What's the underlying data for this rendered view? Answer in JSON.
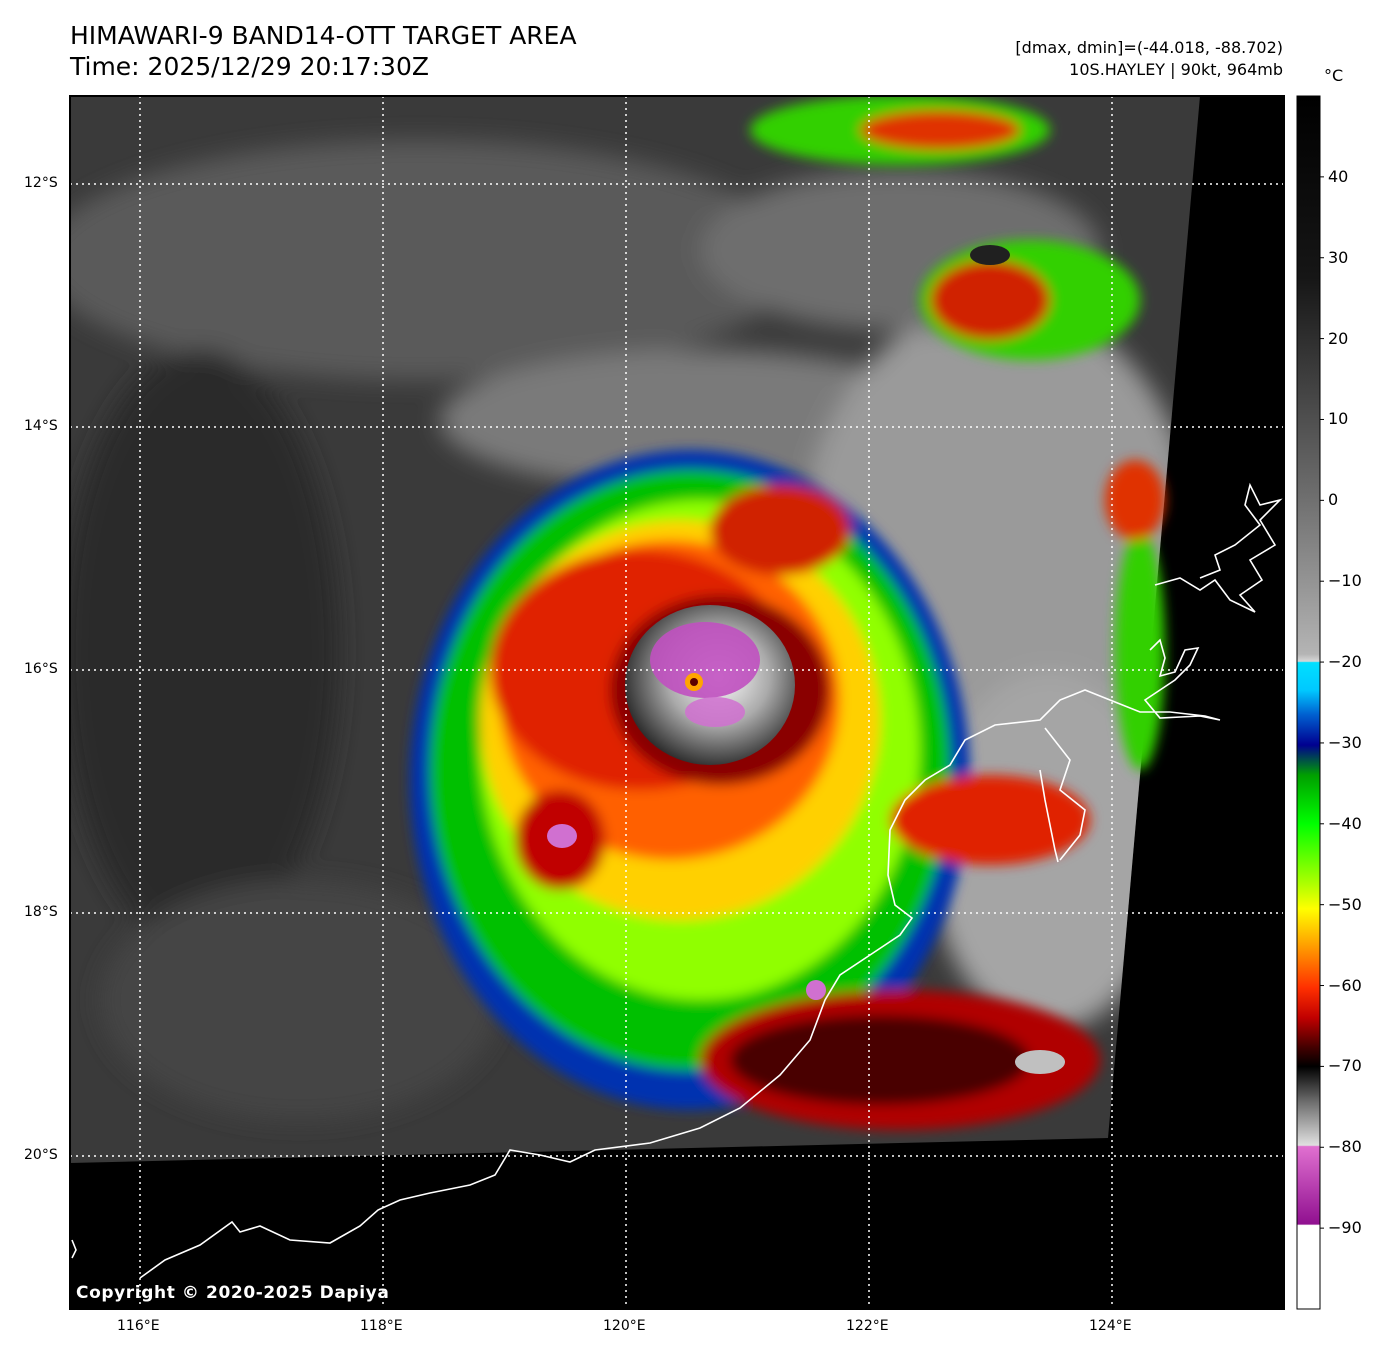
{
  "header": {
    "title_line1": "HIMAWARI-9 BAND14-OTT TARGET AREA",
    "title_line2": "Time: 2025/12/29 20:17:30Z",
    "stats_line1": "[dmax, dmin]=(-44.018, -88.702)",
    "stats_line2": "10S.HAYLEY | 90kt, 964mb"
  },
  "colorbar": {
    "unit": "°C",
    "ticks": [
      "40",
      "30",
      "20",
      "10",
      "0",
      "−10",
      "−20",
      "−30",
      "−40",
      "−50",
      "−60",
      "−70",
      "−80",
      "−90"
    ],
    "tick_values": [
      40,
      30,
      20,
      10,
      0,
      -10,
      -20,
      -30,
      -40,
      -50,
      -60,
      -70,
      -80,
      -90
    ],
    "range": [
      -100,
      50
    ]
  },
  "axes": {
    "lat_labels": [
      "12°S",
      "14°S",
      "16°S",
      "18°S",
      "20°S"
    ],
    "lat_values": [
      -12,
      -14,
      -16,
      -18,
      -20
    ],
    "lon_labels": [
      "116°E",
      "118°E",
      "120°E",
      "122°E",
      "124°E"
    ],
    "lon_values": [
      116,
      118,
      120,
      122,
      124
    ]
  },
  "storm": {
    "id": "10S.HAYLEY",
    "wind_kt": 90,
    "pressure_mb": 964
  },
  "colors": {
    "no_data": "#000000",
    "coastline": "#ffffff",
    "gridline": "#ffffff",
    "eye": "#ffa500",
    "coldest_tops": "#d25ad2"
  },
  "copyright": "Copyright © 2020-2025 Dapiya"
}
